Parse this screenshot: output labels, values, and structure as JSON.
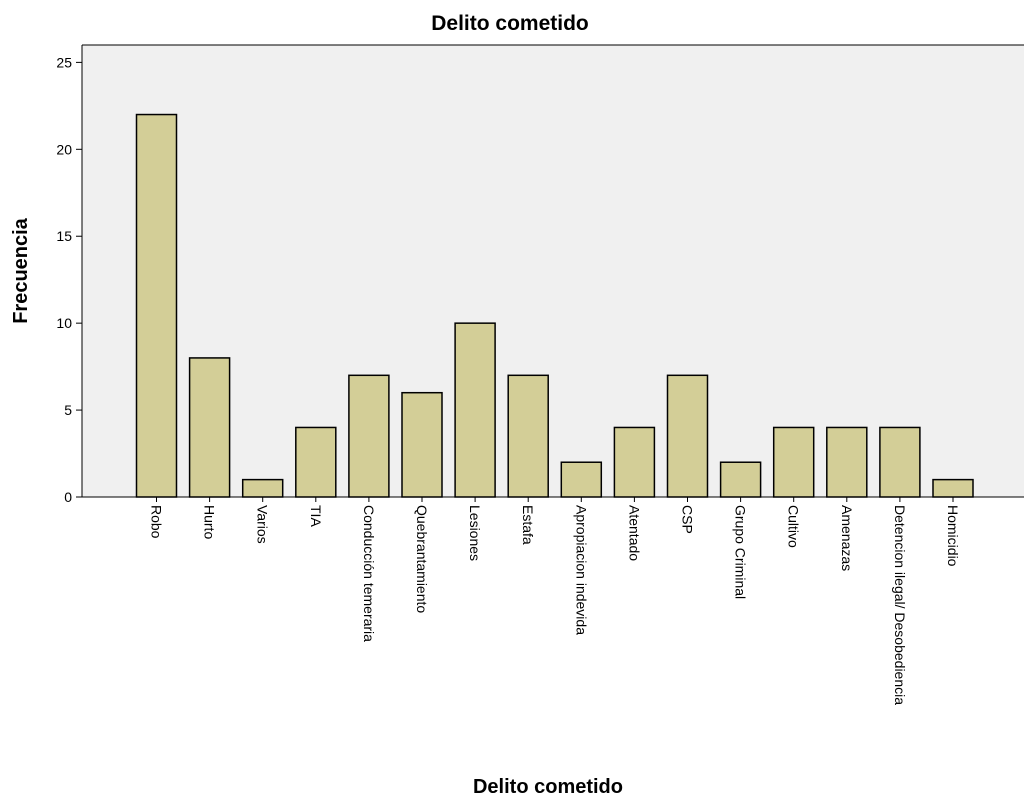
{
  "chart_data": {
    "type": "bar",
    "title": "Delito cometido",
    "xlabel": "Delito cometido",
    "ylabel": "Frecuencia",
    "categories": [
      "Robo",
      "Hurto",
      "Varios",
      "TIA",
      "Conducción temeraria",
      "Quebrantamiento",
      "Lesiones",
      "Estafa",
      "Apropiacion indevida",
      "Atentado",
      "CSP",
      "Grupo Criminal",
      "Cultivo",
      "Amenazas",
      "Detencion ilegal/ Desobediencia",
      "Homicidio"
    ],
    "values": [
      22,
      8,
      1,
      4,
      7,
      6,
      10,
      7,
      2,
      4,
      7,
      2,
      4,
      4,
      4,
      1
    ],
    "ylim": [
      0,
      26
    ],
    "yticks": [
      0,
      5,
      10,
      15,
      20,
      25
    ],
    "grid": false,
    "legend": "none",
    "colors": {
      "bar_fill": "#d3ce97",
      "bar_stroke": "#000000",
      "plot_background": "#f0f0f0",
      "axis": "#000000"
    }
  }
}
